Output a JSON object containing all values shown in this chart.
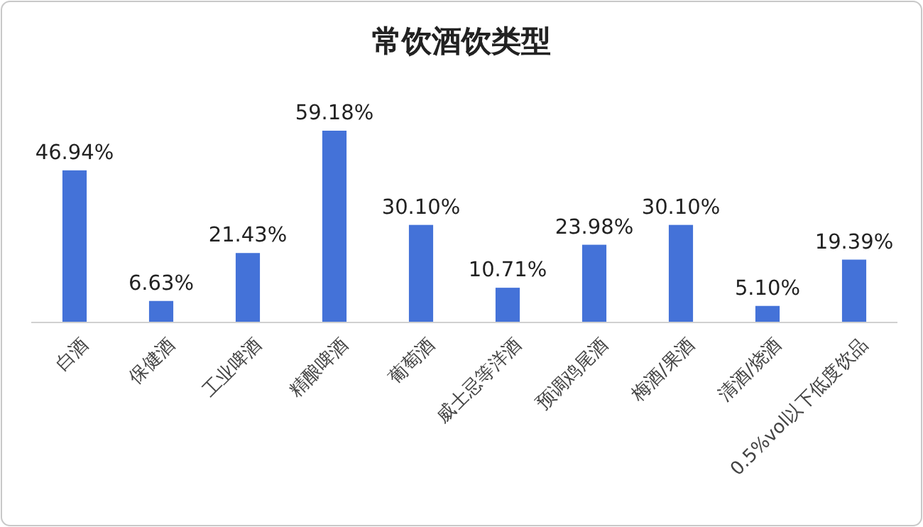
{
  "chart_data": {
    "type": "bar",
    "title": "常饮酒饮类型",
    "categories": [
      "白酒",
      "保健酒",
      "工业啤酒",
      "精酿啤酒",
      "葡萄酒",
      "威士忌等洋酒",
      "预调鸡尾酒",
      "梅酒/果酒",
      "清酒/烧酒",
      "0.5%vol以下低度饮品"
    ],
    "values": [
      46.94,
      6.63,
      21.43,
      59.18,
      30.1,
      10.71,
      23.98,
      30.1,
      5.1,
      19.39
    ],
    "value_labels": [
      "46.94%",
      "6.63%",
      "21.43%",
      "59.18%",
      "30.10%",
      "10.71%",
      "23.98%",
      "30.10%",
      "5.10%",
      "19.39%"
    ],
    "color": "#4472d8"
  }
}
